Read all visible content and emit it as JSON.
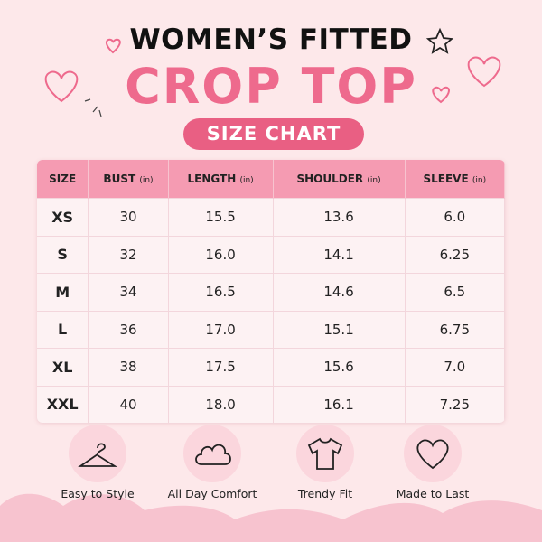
{
  "header": {
    "title": "WOMEN’S FITTED",
    "subtitle": "CROP TOP",
    "badge": "SIZE CHART"
  },
  "table": {
    "columns": [
      {
        "label": "SIZE"
      },
      {
        "label": "BUST",
        "unit": "(in)"
      },
      {
        "label": "LENGTH",
        "unit": "(in)"
      },
      {
        "label": "SHOULDER",
        "unit": "(in)"
      },
      {
        "label": "SLEEVE",
        "unit": "(in)"
      }
    ],
    "rows": [
      [
        "XS",
        "30",
        "15.5",
        "13.6",
        "6.0"
      ],
      [
        "S",
        "32",
        "16.0",
        "14.1",
        "6.25"
      ],
      [
        "M",
        "34",
        "16.5",
        "14.6",
        "6.5"
      ],
      [
        "L",
        "36",
        "17.0",
        "15.1",
        "6.75"
      ],
      [
        "XL",
        "38",
        "17.5",
        "15.6",
        "7.0"
      ],
      [
        "XXL",
        "40",
        "18.0",
        "16.1",
        "7.25"
      ]
    ]
  },
  "features": [
    "Easy to Style",
    "All Day Comfort",
    "Trendy Fit",
    "Made to Last"
  ]
}
